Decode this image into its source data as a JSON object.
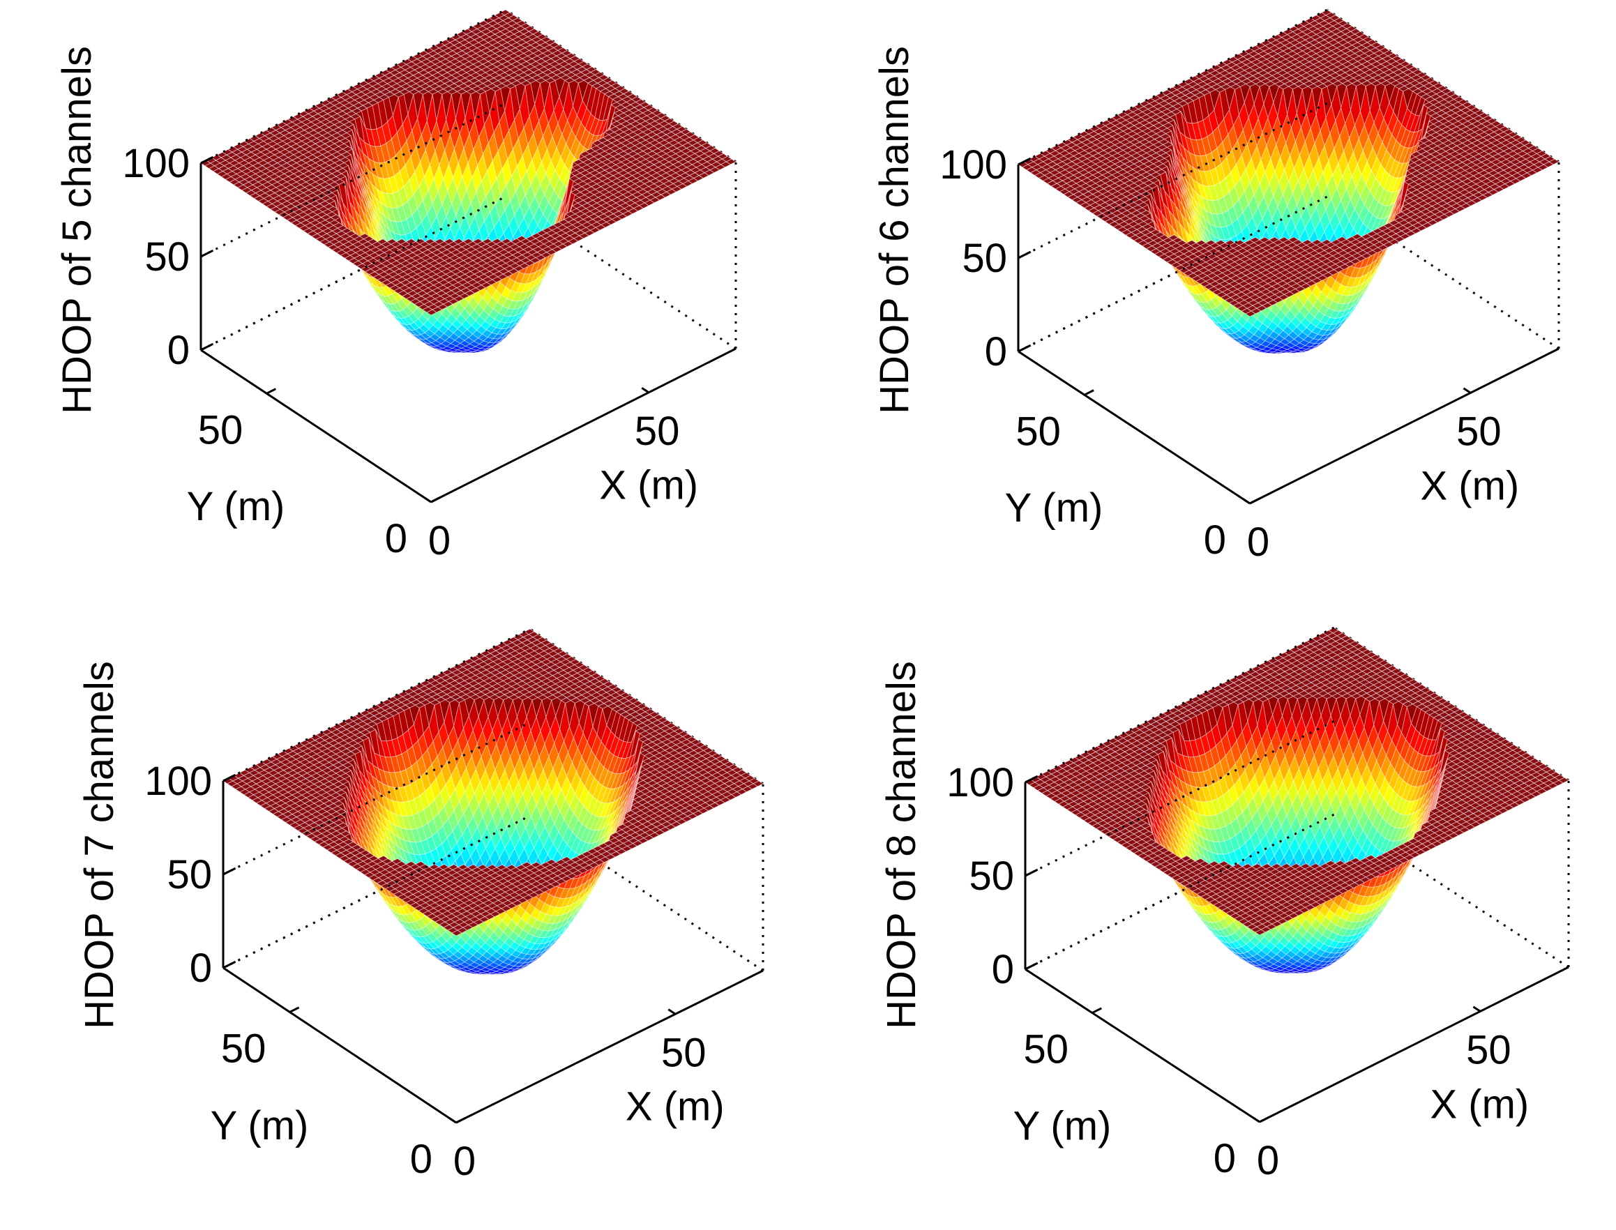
{
  "figure": {
    "colormap": "jet",
    "wall_color": "#8b0d14",
    "grid_line_color": "#ffffff",
    "axis_color": "#000000"
  },
  "chart_data": [
    {
      "type": "surface3d",
      "title": "",
      "zlabel": "HDOP of 5 channels",
      "xlabel": "X (m)",
      "ylabel": "Y (m)",
      "xlim": [
        0,
        70
      ],
      "ylim": [
        0,
        70
      ],
      "zlim": [
        0,
        100
      ],
      "x_ticks": [
        "0",
        "50"
      ],
      "y_ticks": [
        "0",
        "50"
      ],
      "z_ticks": [
        "0",
        "50",
        "100"
      ],
      "grid": true,
      "plateau_value": 100,
      "min_value": 2,
      "bowl_shape": "irregular four-lobed"
    },
    {
      "type": "surface3d",
      "title": "",
      "zlabel": "HDOP of 6 channels",
      "xlabel": "X (m)",
      "ylabel": "Y (m)",
      "xlim": [
        0,
        70
      ],
      "ylim": [
        0,
        70
      ],
      "zlim": [
        0,
        100
      ],
      "x_ticks": [
        "0",
        "50"
      ],
      "y_ticks": [
        "0",
        "50"
      ],
      "z_ticks": [
        "0",
        "50",
        "100"
      ],
      "grid": true,
      "plateau_value": 100,
      "min_value": 2,
      "bowl_shape": "four-lobed"
    },
    {
      "type": "surface3d",
      "title": "",
      "zlabel": "HDOP of 7 channels",
      "xlabel": "X (m)",
      "ylabel": "Y (m)",
      "xlim": [
        0,
        70
      ],
      "ylim": [
        0,
        70
      ],
      "zlim": [
        0,
        100
      ],
      "x_ticks": [
        "0",
        "50"
      ],
      "y_ticks": [
        "0",
        "50"
      ],
      "z_ticks": [
        "0",
        "50",
        "100"
      ],
      "grid": true,
      "plateau_value": 100,
      "min_value": 1.5,
      "bowl_shape": "rounded square"
    },
    {
      "type": "surface3d",
      "title": "",
      "zlabel": "HDOP of 8 channels",
      "xlabel": "X (m)",
      "ylabel": "Y (m)",
      "xlim": [
        0,
        70
      ],
      "ylim": [
        0,
        70
      ],
      "zlim": [
        0,
        100
      ],
      "x_ticks": [
        "0",
        "50"
      ],
      "y_ticks": [
        "0",
        "50"
      ],
      "z_ticks": [
        "0",
        "50",
        "100"
      ],
      "grid": true,
      "plateau_value": 100,
      "min_value": 1.5,
      "bowl_shape": "rounded square"
    }
  ]
}
